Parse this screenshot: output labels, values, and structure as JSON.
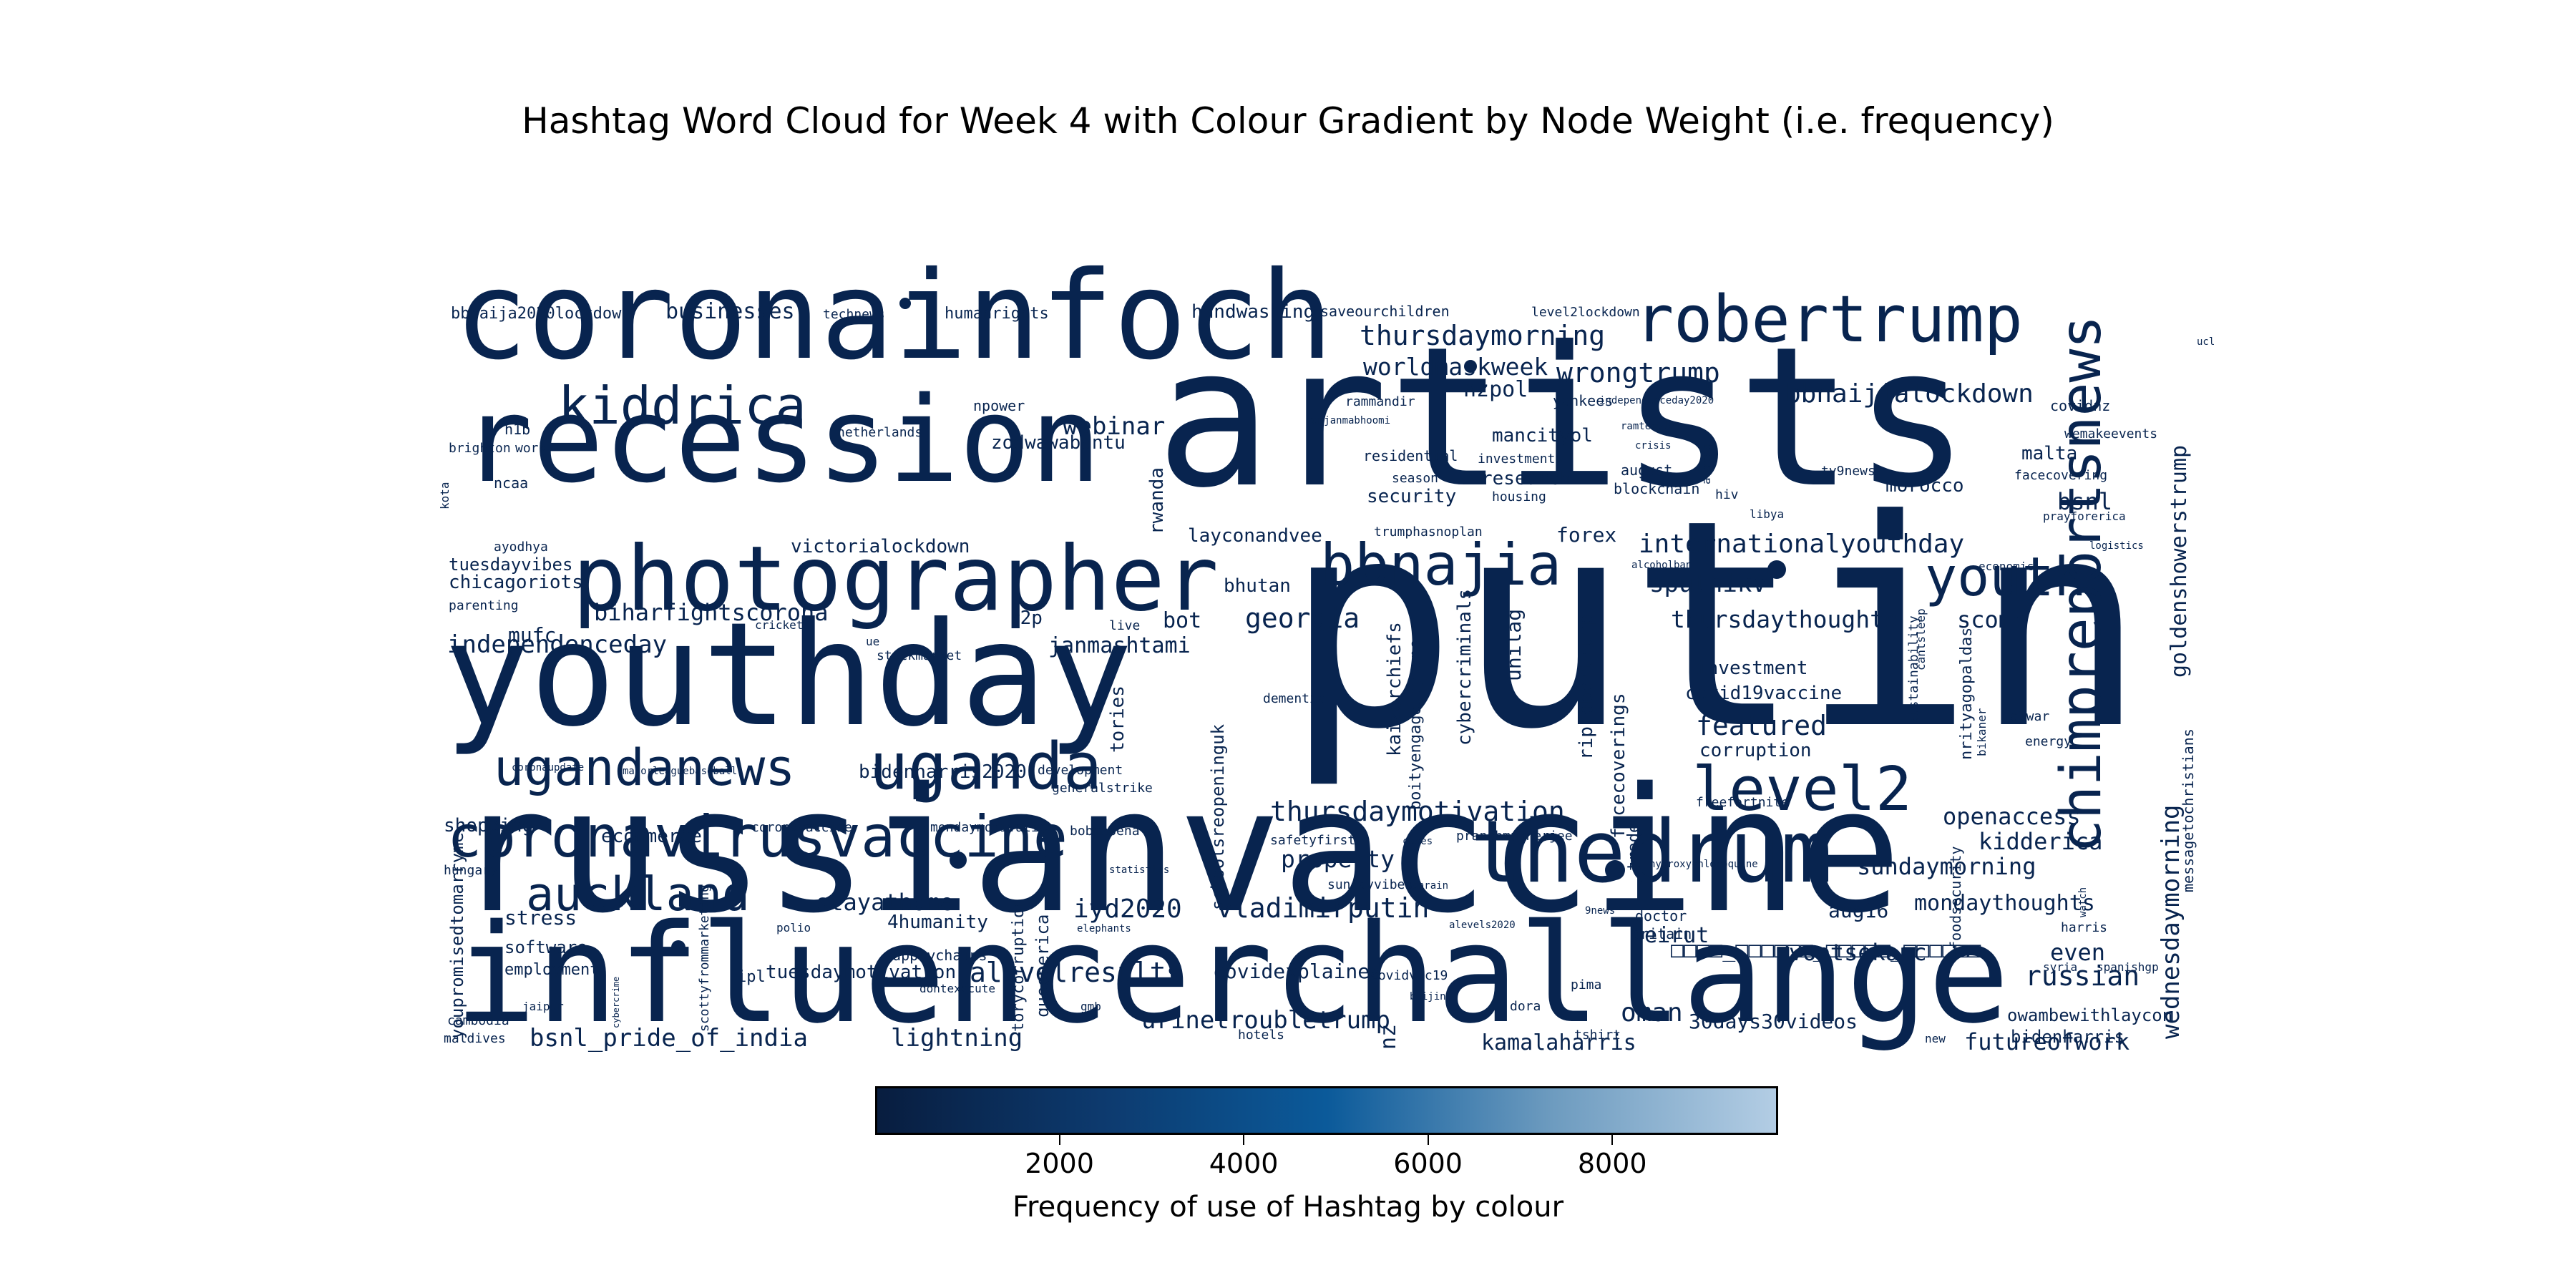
{
  "chart_data": {
    "type": "wordcloud",
    "title": "Hashtag Word Cloud for Week 4 with Colour Gradient by Node Weight (i.e. frequency)",
    "colorbar": {
      "label": "Frequency of use of Hashtag by colour",
      "ticks": [
        "2000",
        "4000",
        "6000",
        "8000"
      ],
      "range": [
        0,
        9800
      ],
      "colors": [
        "#081d3f",
        "#0d3a6e",
        "#0b5a9a",
        "#6d9bbf",
        "#b3cde4"
      ]
    },
    "words": [
      {
        "text": "putin",
        "weight": 9800
      },
      {
        "text": "artists",
        "weight": 7600
      },
      {
        "text": "russianvaccine",
        "weight": 7200
      },
      {
        "text": "influencerchallange",
        "weight": 6000
      },
      {
        "text": "youthday",
        "weight": 5800
      },
      {
        "text": "coronainfoch",
        "weight": 5000
      },
      {
        "text": "recession",
        "weight": 4900
      },
      {
        "text": "photographer",
        "weight": 3900
      },
      {
        "text": "thedrum",
        "weight": 3500
      },
      {
        "text": "robertrump",
        "weight": 3000
      },
      {
        "text": "chimpreportsnews",
        "weight": 2600
      },
      {
        "text": "coronavirusvaccine",
        "weight": 2600
      },
      {
        "text": "bbnajia",
        "weight": 2500
      },
      {
        "text": "level2",
        "weight": 2500
      },
      {
        "text": "uganda",
        "weight": 2500
      },
      {
        "text": "ugandanews",
        "weight": 2300
      },
      {
        "text": "kiddrica",
        "weight": 2100
      },
      {
        "text": "youth",
        "weight": 2100
      },
      {
        "text": "auckland",
        "weight": 2100
      },
      {
        "text": "internationalyouthday",
        "weight": 1300
      },
      {
        "text": "thursdaymorning",
        "weight": 1200
      },
      {
        "text": "wrongtrump",
        "weight": 1200
      },
      {
        "text": "worldmaskweek",
        "weight": 1100
      },
      {
        "text": "bbnaijialockdown",
        "weight": 1200
      },
      {
        "text": "thursdaymotivation",
        "weight": 1300
      },
      {
        "text": "vladimirputin",
        "weight": 1300
      },
      {
        "text": "goldenshowerstrump",
        "weight": 1100
      },
      {
        "text": "wednesdaymorning",
        "weight": 1000
      },
      {
        "text": "webinar",
        "weight": 1000
      },
      {
        "text": "georgia",
        "weight": 1100
      },
      {
        "text": "sputnikv",
        "weight": 1000
      },
      {
        "text": "thursdaythoughts",
        "weight": 1100
      },
      {
        "text": "scomo",
        "weight": 900
      },
      {
        "text": "featured",
        "weight": 1100
      },
      {
        "text": "property",
        "weight": 1000
      },
      {
        "text": "iyd2020",
        "weight": 1000
      },
      {
        "text": "stayathome",
        "weight": 900
      },
      {
        "text": "alevelresults",
        "weight": 1100
      },
      {
        "text": "urinetroubletrump",
        "weight": 1000
      },
      {
        "text": "russian",
        "weight": 1000
      },
      {
        "text": "futureofwork",
        "weight": 900
      },
      {
        "text": "oman",
        "weight": 1000
      },
      {
        "text": "sundaymorning",
        "weight": 900
      },
      {
        "text": "mondaythoughts",
        "weight": 900
      },
      {
        "text": "kidderica",
        "weight": 900
      },
      {
        "text": "openaccess",
        "weight": 900
      },
      {
        "text": "even",
        "weight": 900
      },
      {
        "text": "bsnl",
        "weight": 900
      },
      {
        "text": "bsnl_pride_of_india",
        "weight": 1000
      },
      {
        "text": "lightning",
        "weight": 1000
      },
      {
        "text": "kamalaharris",
        "weight": 900
      },
      {
        "text": "independenceday",
        "weight": 1000
      },
      {
        "text": "biharfightscorona",
        "weight": 1000
      },
      {
        "text": "janmashtami",
        "weight": 900
      },
      {
        "text": "riprobertrump",
        "weight": 800
      },
      {
        "text": "facecoverings",
        "weight": 800
      },
      {
        "text": "mancityol",
        "weight": 700
      },
      {
        "text": "nzpol",
        "weight": 800
      },
      {
        "text": "bidenharris2020",
        "weight": 700
      },
      {
        "text": "bhutan",
        "weight": 700
      },
      {
        "text": "forex",
        "weight": 700
      },
      {
        "text": "layconandvee",
        "weight": 700
      },
      {
        "text": "unilag",
        "weight": 700
      },
      {
        "text": "rwanda",
        "weight": 700
      },
      {
        "text": "zodwawabantu",
        "weight": 700
      },
      {
        "text": "victorialockdown",
        "weight": 600
      },
      {
        "text": "bot",
        "weight": 700
      },
      {
        "text": "r2p",
        "weight": 600
      },
      {
        "text": "mufc",
        "weight": 700
      },
      {
        "text": "chicagoriots",
        "weight": 600
      },
      {
        "text": "tuesdayvibes",
        "weight": 600
      },
      {
        "text": "businesses",
        "weight": 700
      },
      {
        "text": "handwashing",
        "weight": 600
      },
      {
        "text": "research",
        "weight": 600
      },
      {
        "text": "security",
        "weight": 600
      },
      {
        "text": "malta",
        "weight": 600
      },
      {
        "text": "morocco",
        "weight": 600
      },
      {
        "text": "investment",
        "weight": 600
      },
      {
        "text": "covid19vaccine",
        "weight": 600
      },
      {
        "text": "corruption",
        "weight": 600
      },
      {
        "text": "nrityagopaldas",
        "weight": 500
      },
      {
        "text": "kaizerchiefs",
        "weight": 600
      },
      {
        "text": "boityengagedbymaps",
        "weight": 500
      },
      {
        "text": "cybercriminals",
        "weight": 600
      },
      {
        "text": "schoolsreopeninguk",
        "weight": 600
      },
      {
        "text": "tories",
        "weight": 600
      },
      {
        "text": "voetsekanc",
        "weight": 700
      },
      {
        "text": "beirut",
        "weight": 700
      },
      {
        "text": "aug16",
        "weight": 700
      },
      {
        "text": "covidexplained",
        "weight": 700
      },
      {
        "text": "tuesdaymotivation",
        "weight": 600
      },
      {
        "text": "torycorruption",
        "weight": 500
      },
      {
        "text": "queenerica",
        "weight": 500
      },
      {
        "text": "4humanity",
        "weight": 600
      },
      {
        "text": "stress",
        "weight": 600
      },
      {
        "text": "software",
        "weight": 500
      },
      {
        "text": "employment",
        "weight": 500
      },
      {
        "text": "shopping",
        "weight": 600
      },
      {
        "text": "ecommerce",
        "weight": 600
      },
      {
        "text": "trade",
        "weight": 500
      },
      {
        "text": "owambewithlaycon",
        "weight": 500
      },
      {
        "text": "bidenharris",
        "weight": 500
      },
      {
        "text": "30days30videos",
        "weight": 600
      },
      {
        "text": "nz",
        "weight": 600
      },
      {
        "text": "youpromisedtomarryme",
        "weight": 500
      },
      {
        "text": "scottyfrommarketing",
        "weight": 400
      },
      {
        "text": "messagetochristians",
        "weight": 400
      },
      {
        "text": "foodsecurity",
        "weight": 400
      },
      {
        "text": "sustainability",
        "weight": 400
      },
      {
        "text": "humanrights",
        "weight": 400
      },
      {
        "text": "bbnaija2020lockdown",
        "weight": 400
      },
      {
        "text": "technews",
        "weight": 300
      },
      {
        "text": "saveourchildren",
        "weight": 300
      },
      {
        "text": "level2lockdown",
        "weight": 300
      },
      {
        "text": "npower",
        "weight": 400
      },
      {
        "text": "netherlands",
        "weight": 300
      },
      {
        "text": "rammandir",
        "weight": 300
      },
      {
        "text": "ramjanmabhoomi",
        "weight": 200
      },
      {
        "text": "yankees",
        "weight": 300
      },
      {
        "text": "independenceday2020",
        "weight": 200
      },
      {
        "text": "ramtemple",
        "weight": 200
      },
      {
        "text": "residential",
        "weight": 300
      },
      {
        "text": "investments",
        "weight": 300
      },
      {
        "text": "season",
        "weight": 300
      },
      {
        "text": "housing",
        "weight": 300
      },
      {
        "text": "august",
        "weight": 300
      },
      {
        "text": "blockchain",
        "weight": 300
      },
      {
        "text": "crisis",
        "weight": 200
      },
      {
        "text": "atapsg",
        "weight": 200
      },
      {
        "text": "hiv",
        "weight": 300
      },
      {
        "text": "tv9news",
        "weight": 300
      },
      {
        "text": "libya",
        "weight": 200
      },
      {
        "text": "covidnz",
        "weight": 300
      },
      {
        "text": "wemakeevents",
        "weight": 300
      },
      {
        "text": "facecovering",
        "weight": 300
      },
      {
        "text": "prayforerica",
        "weight": 200
      },
      {
        "text": "logistics",
        "weight": 200
      },
      {
        "text": "economic",
        "weight": 200
      },
      {
        "text": "alcoholban",
        "weight": 200
      },
      {
        "text": "trumphasnoplan",
        "weight": 300
      },
      {
        "text": "h1b",
        "weight": 300
      },
      {
        "text": "brighton",
        "weight": 300
      },
      {
        "text": "work",
        "weight": 300
      },
      {
        "text": "ncaa",
        "weight": 300
      },
      {
        "text": "kota",
        "weight": 200
      },
      {
        "text": "ayodhya",
        "weight": 300
      },
      {
        "text": "parenting",
        "weight": 300
      },
      {
        "text": "cricket",
        "weight": 200
      },
      {
        "text": "live",
        "weight": 300
      },
      {
        "text": "ue",
        "weight": 200
      },
      {
        "text": "stockmarket",
        "weight": 300
      },
      {
        "text": "dementia",
        "weight": 300
      },
      {
        "text": "cantsleep",
        "weight": 300
      },
      {
        "text": "alwar",
        "weight": 300
      },
      {
        "text": "energy",
        "weight": 300
      },
      {
        "text": "bikaner",
        "weight": 300
      },
      {
        "text": "coronaupdate",
        "weight": 200
      },
      {
        "text": "majorleaguebaseball",
        "weight": 200
      },
      {
        "text": "development",
        "weight": 300
      },
      {
        "text": "generalstrike",
        "weight": 300
      },
      {
        "text": "coronavaccine",
        "weight": 300
      },
      {
        "text": "mondaymotivation",
        "weight": 300
      },
      {
        "text": "bobmabena",
        "weight": 300
      },
      {
        "text": "statistics",
        "weight": 200
      },
      {
        "text": "safetyfirst",
        "weight": 300
      },
      {
        "text": "cases",
        "weight": 200
      },
      {
        "text": "pranabmukherjee",
        "weight": 300
      },
      {
        "text": "sundayvibes",
        "weight": 300
      },
      {
        "text": "bahrain",
        "weight": 200
      },
      {
        "text": "freefortnite",
        "weight": 300
      },
      {
        "text": "hydroxychloroquine",
        "weight": 200
      },
      {
        "text": "hungary",
        "weight": 300
      },
      {
        "text": "polio",
        "weight": 200
      },
      {
        "text": "jaipur",
        "weight": 200
      },
      {
        "text": "ipl",
        "weight": 300
      },
      {
        "text": "supplychains",
        "weight": 300
      },
      {
        "text": "dontexecute",
        "weight": 200
      },
      {
        "text": "elephants",
        "weight": 200
      },
      {
        "text": "covidvic19",
        "weight": 300
      },
      {
        "text": "alevels2020",
        "weight": 200
      },
      {
        "text": "9news",
        "weight": 200
      },
      {
        "text": "doctor",
        "weight": 300
      },
      {
        "text": "britain",
        "weight": 300
      },
      {
        "text": "pima",
        "weight": 300
      },
      {
        "text": "beijing",
        "weight": 200
      },
      {
        "text": "tshirt",
        "weight": 300
      },
      {
        "text": "dora",
        "weight": 300
      },
      {
        "text": "gmb",
        "weight": 200
      },
      {
        "text": "hotels",
        "weight": 300
      },
      {
        "text": "cambodia",
        "weight": 300
      },
      {
        "text": "maldives",
        "weight": 300
      },
      {
        "text": "cybercrime",
        "weight": 200
      },
      {
        "text": "new",
        "weight": 200
      },
      {
        "text": "syria",
        "weight": 200
      },
      {
        "text": "harris",
        "weight": 300
      },
      {
        "text": "spanishgp",
        "weight": 200
      },
      {
        "text": "watch",
        "weight": 200
      },
      {
        "text": "ucl",
        "weight": 200
      },
      {
        "text": "□□□□_□□□□□□_□□□□□_□□□□□□",
        "weight": 700
      }
    ]
  }
}
